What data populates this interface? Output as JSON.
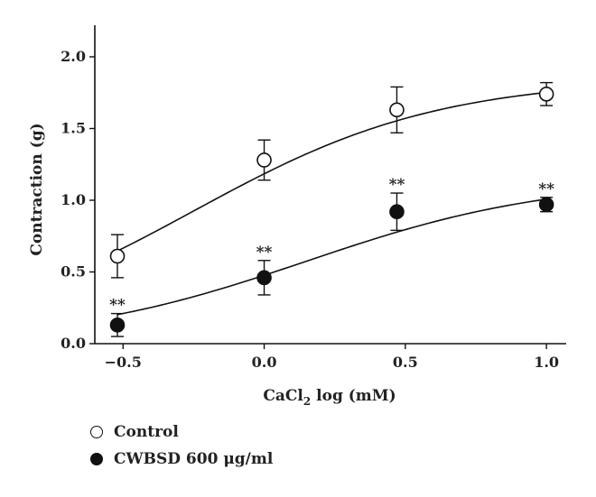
{
  "chart_data": {
    "type": "scatter",
    "xlabel": "CaCl",
    "xlabel_sub": "2",
    "xlabel_suffix": " log (mM)",
    "ylabel": "Contraction (g)",
    "xlim": [
      -0.6,
      1.07
    ],
    "ylim": [
      0,
      2.22
    ],
    "x_ticks": [
      -0.5,
      0.0,
      0.5,
      1.0
    ],
    "x_tick_labels": [
      "−0.5",
      "0.0",
      "0.5",
      "1.0"
    ],
    "y_ticks": [
      0.0,
      0.5,
      1.0,
      1.5,
      2.0
    ],
    "y_tick_labels": [
      "0.0",
      "0.5",
      "1.0",
      "1.5",
      "2.0"
    ],
    "grid": false,
    "legend_position": "bottom-left",
    "series": [
      {
        "name": "Control",
        "marker": "open-circle",
        "x": [
          -0.52,
          0.0,
          0.47,
          1.0
        ],
        "y": [
          0.61,
          1.28,
          1.63,
          1.74
        ],
        "error": [
          0.15,
          0.14,
          0.16,
          0.08
        ],
        "fit": {
          "top": 1.85,
          "logEC50": -0.25,
          "hill": 1.0
        }
      },
      {
        "name": "CWBSD 600 μg/ml",
        "marker": "filled-circle",
        "x": [
          -0.52,
          0.0,
          0.47,
          1.0
        ],
        "y": [
          0.13,
          0.46,
          0.92,
          0.97
        ],
        "error": [
          0.08,
          0.12,
          0.13,
          0.05
        ],
        "significance": [
          "**",
          "**",
          "**",
          "**"
        ],
        "fit": {
          "top": 1.15,
          "logEC50": 0.15,
          "hill": 1.0
        }
      }
    ]
  }
}
